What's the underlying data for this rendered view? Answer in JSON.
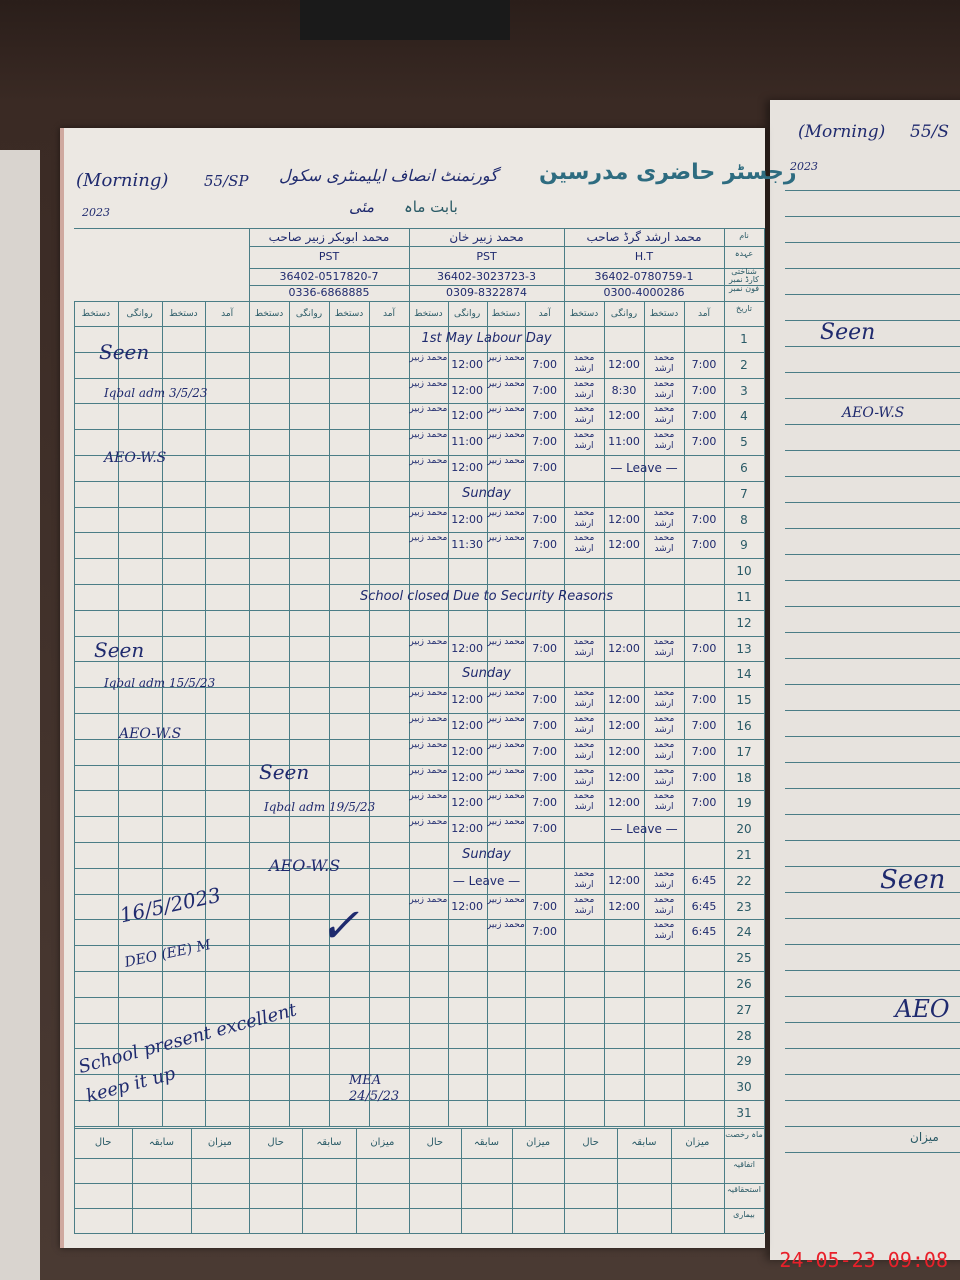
{
  "register": {
    "title": "رجسٹر حاضری مدرسین",
    "school": "گورنمنٹ انصاف ایلیمنٹری سکول",
    "shift": "(Morning)",
    "code": "55/SP",
    "year": "2023",
    "month_label": "بابت ماہ",
    "month": "مئی",
    "row_labels": [
      "نام",
      "عہدہ",
      "شناختی کارڈ نمبر",
      "فون نمبر",
      "تاریخ"
    ],
    "col_headers": [
      "آمد",
      "دستخط",
      "روانگی",
      "دستخط"
    ],
    "footer_headers": [
      "میزان",
      "سابقہ",
      "حال"
    ],
    "footer_rows": [
      "ماہ رخصت",
      "اتفاقیہ",
      "استحقاقیہ",
      "بیماری"
    ],
    "teachers": [
      {
        "name": "محمد ارشد گرڈ صاحب",
        "post": "H.T",
        "cnic": "36402-0780759-1",
        "phone": "0300-4000286"
      },
      {
        "name": "محمد زبیر خان",
        "post": "PST",
        "cnic": "36402-3023723-3",
        "phone": "0309-8322874"
      },
      {
        "name": "محمد ابوبکر زبیر صاحب",
        "post": "PST",
        "cnic": "36402-0517820-7",
        "phone": "0336-6868885"
      },
      {
        "name": "",
        "post": "",
        "cnic": "",
        "phone": ""
      }
    ],
    "days": [
      {
        "d": "1",
        "note": "1st May Labour Day"
      },
      {
        "d": "2",
        "a": [
          "7:00",
          "محمد ارشد",
          "12:00",
          "محمد ارشد"
        ],
        "z": [
          "7:00",
          "محمد زبیر",
          "12:00",
          "محمد زبیر"
        ]
      },
      {
        "d": "3",
        "a": [
          "7:00",
          "محمد ارشد",
          "8:30",
          "محمد ارشد"
        ],
        "z": [
          "7:00",
          "محمد زبیر",
          "12:00",
          "محمد زبیر"
        ]
      },
      {
        "d": "4",
        "a": [
          "7:00",
          "محمد ارشد",
          "12:00",
          "محمد ارشد"
        ],
        "z": [
          "7:00",
          "محمد زبیر",
          "12:00",
          "محمد زبیر"
        ]
      },
      {
        "d": "5",
        "a": [
          "7:00",
          "محمد ارشد",
          "11:00",
          "محمد ارشد"
        ],
        "z": [
          "7:00",
          "محمد زبیر",
          "11:00",
          "محمد زبیر"
        ]
      },
      {
        "d": "6",
        "a_note": "— Leave —",
        "z": [
          "7:00",
          "محمد زبیر",
          "12:00",
          "محمد زبیر"
        ]
      },
      {
        "d": "7",
        "note": "Sunday"
      },
      {
        "d": "8",
        "a": [
          "7:00",
          "محمد ارشد",
          "12:00",
          "محمد ارشد"
        ],
        "z": [
          "7:00",
          "محمد زبیر",
          "12:00",
          "محمد زبیر"
        ]
      },
      {
        "d": "9",
        "a": [
          "7:00",
          "محمد ارشد",
          "12:00",
          "محمد ارشد"
        ],
        "z": [
          "7:00",
          "محمد زبیر",
          "11:30",
          "محمد زبیر"
        ]
      },
      {
        "d": "10"
      },
      {
        "d": "11",
        "note": "School closed Due to Security Reasons"
      },
      {
        "d": "12"
      },
      {
        "d": "13",
        "a": [
          "7:00",
          "محمد ارشد",
          "12:00",
          "محمد ارشد"
        ],
        "z": [
          "7:00",
          "محمد زبیر",
          "12:00",
          "محمد زبیر"
        ]
      },
      {
        "d": "14",
        "note": "Sunday"
      },
      {
        "d": "15",
        "a": [
          "7:00",
          "محمد ارشد",
          "12:00",
          "محمد ارشد"
        ],
        "z": [
          "7:00",
          "محمد زبیر",
          "12:00",
          "محمد زبیر"
        ]
      },
      {
        "d": "16",
        "a": [
          "7:00",
          "محمد ارشد",
          "12:00",
          "محمد ارشد"
        ],
        "z": [
          "7:00",
          "محمد زبیر",
          "12:00",
          "محمد زبیر"
        ]
      },
      {
        "d": "17",
        "a": [
          "7:00",
          "محمد ارشد",
          "12:00",
          "محمد ارشد"
        ],
        "z": [
          "7:00",
          "محمد زبیر",
          "12:00",
          "محمد زبیر"
        ]
      },
      {
        "d": "18",
        "a": [
          "7:00",
          "محمد ارشد",
          "12:00",
          "محمد ارشد"
        ],
        "z": [
          "7:00",
          "محمد زبیر",
          "12:00",
          "محمد زبیر"
        ]
      },
      {
        "d": "19",
        "a": [
          "7:00",
          "محمد ارشد",
          "12:00",
          "محمد ارشد"
        ],
        "z": [
          "7:00",
          "محمد زبیر",
          "12:00",
          "محمد زبیر"
        ]
      },
      {
        "d": "20",
        "a_note": "— Leave —",
        "z": [
          "7:00",
          "محمد زبیر",
          "12:00",
          "محمد زبیر"
        ]
      },
      {
        "d": "21",
        "note": "Sunday"
      },
      {
        "d": "22",
        "a": [
          "6:45",
          "محمد ارشد",
          "12:00",
          "محمد ارشد"
        ],
        "z_note": "— Leave —"
      },
      {
        "d": "23",
        "a": [
          "6:45",
          "محمد ارشد",
          "12:00",
          "محمد ارشد"
        ],
        "z": [
          "7:00",
          "محمد زبیر",
          "12:00",
          "محمد زبیر"
        ]
      },
      {
        "d": "24",
        "a": [
          "6:45",
          "محمد ارشد",
          "",
          ""
        ],
        "z": [
          "7:00",
          "محمد زبیر",
          "",
          ""
        ]
      },
      {
        "d": "25"
      },
      {
        "d": "26"
      },
      {
        "d": "27"
      },
      {
        "d": "28"
      },
      {
        "d": "29"
      },
      {
        "d": "30"
      },
      {
        "d": "31"
      }
    ]
  },
  "annotations": {
    "seen1": "Seen",
    "sig1": "Iqbal adm 3/5/23",
    "aeo1": "AEO-W.S",
    "seen2": "Seen",
    "sig2": "Iqbal adm 15/5/23",
    "aeo2": "AEO-W.S",
    "seen3": "Seen",
    "sig3": "Iqbal adm 19/5/23",
    "aeo3": "AEO-W.S",
    "date4": "16/5/2023",
    "remark": "School present excellent keep it up",
    "dep": "DEO (EE) M",
    "mea": "MEA 24/5/23",
    "checks": "✓"
  },
  "right_page": {
    "shift": "(Morning)",
    "code": "55/S",
    "year": "2023",
    "seen": "Seen",
    "aeo": "AEO-W.S",
    "aeo2": "AEO",
    "footer": "میزان"
  },
  "timestamp": "24-05-23  09:08"
}
